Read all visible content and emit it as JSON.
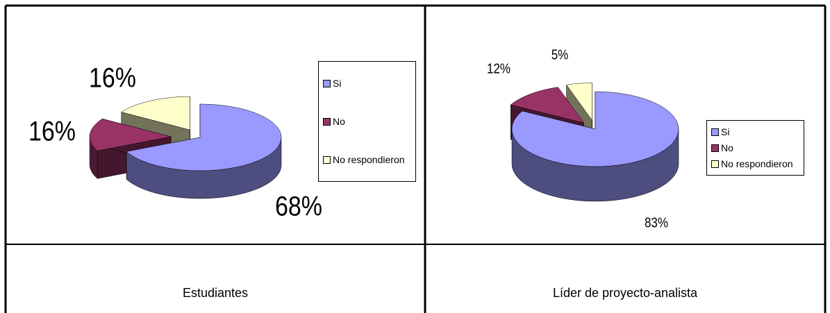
{
  "chart_data": [
    {
      "type": "pie",
      "title": "Estudiantes",
      "categories": [
        "Si",
        "No",
        "No respondieron"
      ],
      "values": [
        68,
        16,
        16
      ],
      "value_labels": [
        "68%",
        "16%",
        "16%"
      ],
      "colors": [
        "#9999ff",
        "#993366",
        "#ffffcc"
      ]
    },
    {
      "type": "pie",
      "title": "Líder de proyecto-analista",
      "categories": [
        "Si",
        "No",
        "No respondieron"
      ],
      "values": [
        83,
        12,
        5
      ],
      "value_labels": [
        "83%",
        "12%",
        "5%"
      ],
      "colors": [
        "#9999ff",
        "#993366",
        "#ffffcc"
      ]
    }
  ]
}
